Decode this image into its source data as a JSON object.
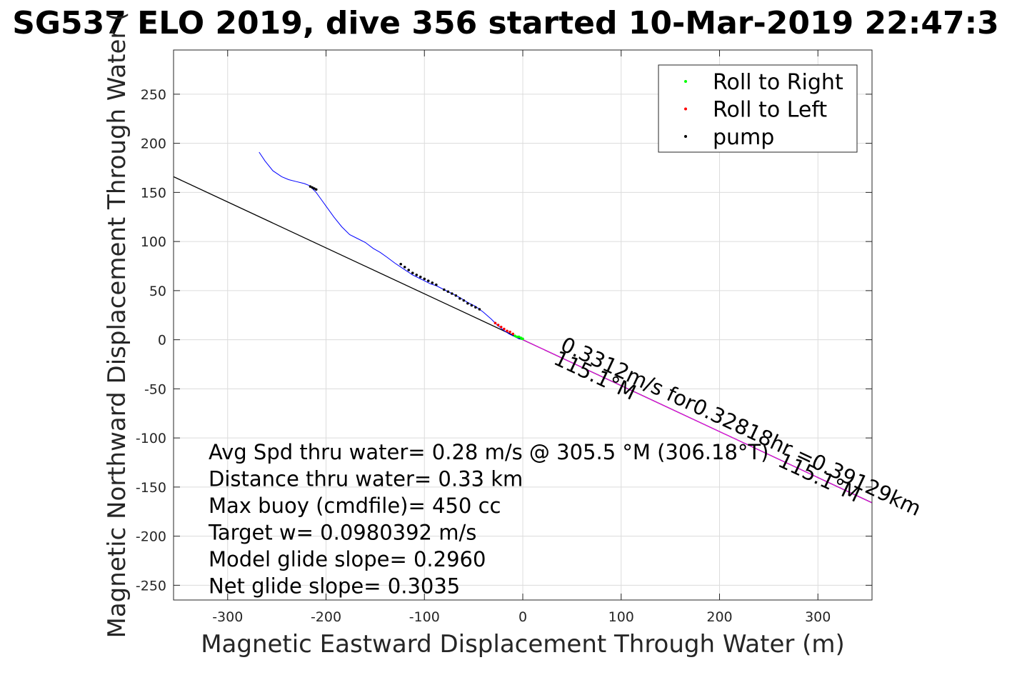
{
  "chart_data": {
    "type": "line",
    "title": "SG537 ELO 2019, dive 356 started 10-Mar-2019 22:47:3",
    "xlabel": "Magnetic Eastward Displacement Through Water (m)",
    "ylabel": "Magnetic Northward Displacement Through Water (",
    "xlim": [
      -355,
      355
    ],
    "ylim": [
      -265,
      295
    ],
    "xticks": [
      -300,
      -200,
      -100,
      0,
      100,
      200,
      300
    ],
    "yticks": [
      -250,
      -200,
      -150,
      -100,
      -50,
      0,
      50,
      100,
      150,
      200,
      250
    ],
    "grid": true,
    "legend_position": "top-right",
    "legend": [
      {
        "label": "Roll to Right",
        "color": "#00ff00"
      },
      {
        "label": "Roll to Left",
        "color": "#ff0000"
      },
      {
        "label": "pump",
        "color": "#000000"
      }
    ],
    "series": [
      {
        "kind": "track",
        "color": "#0000ff",
        "x": [
          -268,
          -262,
          -254,
          -245,
          -238,
          -230,
          -222,
          -217,
          -214,
          -210,
          -205,
          -200,
          -192,
          -184,
          -176,
          -168,
          -160,
          -152,
          -145,
          -138,
          -130,
          -124,
          -118,
          -112,
          -106,
          -100,
          -94,
          -88,
          -80,
          -72,
          -64,
          -56,
          -48,
          -40,
          -32,
          -26,
          -20,
          -14,
          -8,
          -4,
          0
        ],
        "y": [
          191,
          182,
          172,
          166,
          163,
          161,
          159,
          157,
          154,
          150,
          143,
          136,
          125,
          115,
          107,
          103,
          99,
          93,
          89,
          84,
          78,
          74,
          70,
          66,
          63,
          60,
          57,
          55,
          51,
          47,
          43,
          38,
          34,
          28,
          21,
          15,
          10,
          6,
          3,
          1,
          0
        ]
      },
      {
        "kind": "roll-right",
        "color": "#00ff00",
        "x": [
          -8,
          -6,
          -4,
          -2,
          -1,
          0
        ],
        "y": [
          4,
          3,
          3,
          2,
          1,
          1
        ]
      },
      {
        "kind": "roll-left",
        "color": "#ff0000",
        "x": [
          -28,
          -25,
          -22,
          -19,
          -16,
          -13,
          -10
        ],
        "y": [
          17,
          15,
          13,
          11,
          9,
          8,
          6
        ]
      },
      {
        "kind": "pump",
        "color": "#000000",
        "x": [
          -216,
          -214,
          -212,
          -210,
          -124,
          -120,
          -116,
          -112,
          -108,
          -104,
          -100,
          -96,
          -92,
          -88,
          -80,
          -76,
          -72,
          -68,
          -64,
          -60,
          -56,
          -52,
          -48,
          -44
        ],
        "y": [
          156,
          155,
          154,
          153,
          77,
          74,
          71,
          68,
          66,
          64,
          62,
          60,
          58,
          56,
          51,
          49,
          47,
          45,
          42,
          40,
          37,
          35,
          33,
          31
        ]
      },
      {
        "kind": "current-line",
        "color": "#000000",
        "x": [
          -355,
          0,
          355
        ],
        "y": [
          166,
          0,
          -166
        ]
      },
      {
        "kind": "heading-line",
        "color": "#ff00ff",
        "x": [
          0,
          355
        ],
        "y": [
          0,
          -166
        ]
      }
    ],
    "annotations": [
      {
        "text": "0.3312m/s for0.32818hr =0.39129km",
        "x": 37,
        "y": -10,
        "angle": 25
      },
      {
        "text": "115.1°M",
        "x": 30,
        "y": -24,
        "angle": 25
      },
      {
        "text": "115.1°M",
        "x": 258,
        "y": -128,
        "angle": 25
      }
    ],
    "stats": [
      "Avg Spd thru water=  0.28 m/s @ 305.5 °M (306.18°T)",
      "Distance thru water=  0.33 km",
      "Max buoy (cmdfile)= 450 cc",
      "Target w= 0.0980392 m/s",
      "Model glide slope= 0.2960",
      "Net glide slope= 0.3035"
    ]
  }
}
